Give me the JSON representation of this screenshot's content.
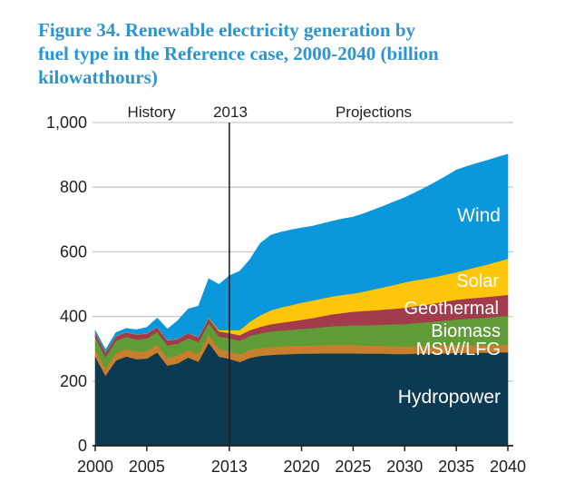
{
  "header": {
    "title_lines": [
      "Figure 34. Renewable electricity generation by",
      "fuel type in the Reference case, 2000-2040 (billion",
      "kilowatthours)"
    ],
    "title_color": "#2a95d0"
  },
  "chart_data": {
    "type": "area",
    "stacked": true,
    "title": "Figure 34. Renewable electricity generation by fuel type in the Reference case, 2000-2040 (billion kilowatthours)",
    "xlabel": "",
    "ylabel": "",
    "units": "billion kilowatthours",
    "ylim": [
      0,
      1000
    ],
    "grid": "horizontal-gridlines-on",
    "legend_position": "labels-inside-areas",
    "x": [
      2000,
      2001,
      2002,
      2003,
      2004,
      2005,
      2006,
      2007,
      2008,
      2009,
      2010,
      2011,
      2012,
      2013,
      2014,
      2015,
      2016,
      2017,
      2018,
      2019,
      2020,
      2021,
      2022,
      2023,
      2024,
      2025,
      2026,
      2027,
      2028,
      2029,
      2030,
      2031,
      2032,
      2033,
      2034,
      2035,
      2036,
      2037,
      2038,
      2039,
      2040
    ],
    "series": [
      {
        "name": "Hydropower",
        "color": "#0b3a52",
        "values": [
          276,
          217,
          264,
          276,
          268,
          270,
          289,
          248,
          255,
          273,
          260,
          319,
          276,
          269,
          259,
          272,
          278,
          281,
          283,
          284,
          285,
          285,
          286,
          286,
          286,
          286,
          285,
          285,
          285,
          284,
          284,
          285,
          285,
          286,
          286,
          287,
          287,
          288,
          288,
          289,
          289
        ]
      },
      {
        "name": "MSW/LFG",
        "color": "#c77f2e",
        "values": [
          23,
          23,
          23,
          24,
          23,
          23,
          24,
          24,
          24,
          24,
          24,
          24,
          24,
          24,
          24,
          24,
          24,
          25,
          25,
          25,
          25,
          25,
          25,
          26,
          26,
          26,
          25,
          25,
          24,
          24,
          23,
          23,
          23,
          23,
          24,
          24,
          24,
          23,
          23,
          23,
          23
        ]
      },
      {
        "name": "Biomass",
        "color": "#5f9c35",
        "values": [
          37,
          35,
          38,
          37,
          38,
          39,
          39,
          39,
          37,
          36,
          37,
          37,
          38,
          40,
          42,
          44,
          46,
          48,
          49,
          50,
          52,
          54,
          56,
          58,
          59,
          61,
          63,
          64,
          66,
          68,
          70,
          72,
          74,
          76,
          78,
          80,
          82,
          84,
          86,
          88,
          90
        ]
      },
      {
        "name": "Geothermal",
        "color": "#a23b4c",
        "values": [
          14,
          14,
          14,
          14,
          15,
          15,
          15,
          15,
          15,
          15,
          15,
          15,
          16,
          16,
          17,
          18,
          20,
          22,
          24,
          26,
          28,
          31,
          34,
          37,
          40,
          42,
          44,
          45,
          47,
          48,
          50,
          52,
          54,
          56,
          59,
          61,
          62,
          63,
          64,
          64,
          65
        ]
      },
      {
        "name": "Solar",
        "color": "#fec60a",
        "values": [
          1,
          1,
          1,
          1,
          1,
          1,
          1,
          1,
          1,
          1,
          1,
          2,
          4,
          9,
          16,
          26,
          36,
          43,
          47,
          50,
          53,
          54,
          55,
          55,
          56,
          56,
          60,
          65,
          69,
          74,
          79,
          80,
          81,
          82,
          83,
          85,
          90,
          95,
          100,
          106,
          112
        ]
      },
      {
        "name": "Wind",
        "color": "#0a97dc",
        "values": [
          6,
          7,
          10,
          11,
          14,
          18,
          27,
          34,
          55,
          74,
          95,
          120,
          141,
          168,
          182,
          192,
          222,
          232,
          233,
          233,
          231,
          230,
          231,
          233,
          235,
          237,
          241,
          246,
          251,
          257,
          262,
          271,
          282,
          293,
          304,
          316,
          319,
          321,
          322,
          323,
          323
        ]
      }
    ],
    "yticks": [
      0,
      200,
      400,
      600,
      800,
      1000
    ],
    "ytick_labels": [
      "0",
      "200",
      "400",
      "600",
      "800",
      "1,000"
    ],
    "xticks": [
      2000,
      2005,
      2013,
      2020,
      2025,
      2030,
      2035,
      2040
    ],
    "xtick_labels": [
      "2000",
      "2005",
      "2013",
      "2020",
      "2025",
      "2030",
      "2035",
      "2040"
    ],
    "divider_year": 2013,
    "top_annotations": [
      {
        "text": "History",
        "x": 167
      },
      {
        "text": "2013",
        "x": 254
      },
      {
        "text": "Projections",
        "x": 412
      }
    ],
    "area_labels": [
      {
        "text": "Wind",
        "x": 552,
        "y": 244,
        "size": 21
      },
      {
        "text": "Solar",
        "x": 550,
        "y": 316,
        "size": 20
      },
      {
        "text": "Geothermal",
        "x": 550,
        "y": 346,
        "size": 20
      },
      {
        "text": "Biomass",
        "x": 552,
        "y": 371,
        "size": 20
      },
      {
        "text": "MSW/LFG",
        "x": 552,
        "y": 391,
        "size": 20
      },
      {
        "text": "Hydropower",
        "x": 552,
        "y": 444,
        "size": 21
      }
    ],
    "colors": {
      "axis": "#231f20",
      "gridline": "#c9c9c9",
      "tick_text": "#231f20",
      "area_label_text": "#ffffff"
    }
  }
}
